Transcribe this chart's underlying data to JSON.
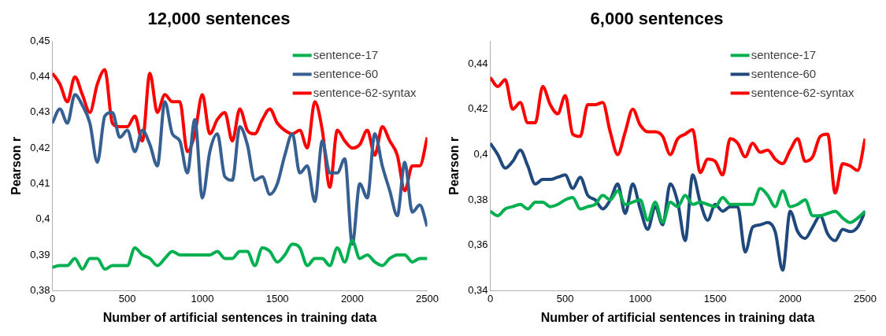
{
  "chart_data": [
    {
      "type": "line",
      "title": "12,000 sentences",
      "xlabel": "Number of artificial sentences in training data",
      "ylabel": "Pearson r",
      "x": [
        0,
        50,
        100,
        150,
        200,
        250,
        300,
        350,
        400,
        450,
        500,
        550,
        600,
        650,
        700,
        750,
        800,
        850,
        900,
        950,
        1000,
        1050,
        1100,
        1150,
        1200,
        1250,
        1300,
        1350,
        1400,
        1450,
        1500,
        1550,
        1600,
        1650,
        1700,
        1750,
        1800,
        1850,
        1900,
        1950,
        2000,
        2050,
        2100,
        2150,
        2200,
        2250,
        2300,
        2350,
        2400,
        2450,
        2500
      ],
      "series": [
        {
          "name": "sentence-17",
          "color": "#00b050",
          "values": [
            0.3865,
            0.387,
            0.387,
            0.389,
            0.386,
            0.389,
            0.389,
            0.386,
            0.387,
            0.387,
            0.387,
            0.392,
            0.39,
            0.389,
            0.387,
            0.389,
            0.391,
            0.39,
            0.39,
            0.39,
            0.39,
            0.39,
            0.391,
            0.389,
            0.389,
            0.391,
            0.391,
            0.387,
            0.392,
            0.391,
            0.388,
            0.39,
            0.393,
            0.392,
            0.387,
            0.389,
            0.389,
            0.387,
            0.392,
            0.388,
            0.394,
            0.389,
            0.39,
            0.388,
            0.387,
            0.389,
            0.39,
            0.39,
            0.388,
            0.389,
            0.389
          ]
        },
        {
          "name": "sentence-60",
          "color": "#376092",
          "values": [
            0.427,
            0.431,
            0.427,
            0.435,
            0.432,
            0.427,
            0.416,
            0.429,
            0.43,
            0.423,
            0.425,
            0.419,
            0.425,
            0.421,
            0.415,
            0.433,
            0.424,
            0.422,
            0.413,
            0.428,
            0.406,
            0.419,
            0.424,
            0.412,
            0.411,
            0.426,
            0.421,
            0.411,
            0.412,
            0.407,
            0.41,
            0.418,
            0.424,
            0.413,
            0.415,
            0.405,
            0.422,
            0.413,
            0.413,
            0.417,
            0.393,
            0.41,
            0.406,
            0.424,
            0.415,
            0.408,
            0.401,
            0.416,
            0.402,
            0.404,
            0.398
          ]
        },
        {
          "name": "sentence-62-syntax",
          "color": "#ff0000",
          "values": [
            0.441,
            0.438,
            0.433,
            0.44,
            0.435,
            0.43,
            0.438,
            0.442,
            0.427,
            0.426,
            0.426,
            0.429,
            0.422,
            0.441,
            0.43,
            0.435,
            0.433,
            0.433,
            0.419,
            0.424,
            0.435,
            0.424,
            0.428,
            0.43,
            0.422,
            0.431,
            0.425,
            0.424,
            0.428,
            0.431,
            0.427,
            0.425,
            0.424,
            0.425,
            0.42,
            0.433,
            0.425,
            0.409,
            0.425,
            0.422,
            0.42,
            0.421,
            0.425,
            0.418,
            0.426,
            0.422,
            0.418,
            0.408,
            0.415,
            0.415,
            0.423
          ]
        }
      ],
      "xlim": [
        0,
        2500
      ],
      "xticks": [
        0,
        500,
        1000,
        1500,
        2000,
        2500
      ],
      "ylim": [
        0.38,
        0.45
      ],
      "yticks": [
        {
          "value": 0.38,
          "label": "0,38"
        },
        {
          "value": 0.39,
          "label": "0,39"
        },
        {
          "value": 0.4,
          "label": "0,4"
        },
        {
          "value": 0.41,
          "label": "0,41"
        },
        {
          "value": 0.42,
          "label": "0,42"
        },
        {
          "value": 0.43,
          "label": "0,43"
        },
        {
          "value": 0.44,
          "label": "0,44"
        },
        {
          "value": 0.45,
          "label": "0,45"
        }
      ],
      "grid": false,
      "legend": "top right",
      "marker": "none",
      "line_style": "solid"
    },
    {
      "type": "line",
      "title": "6,000 sentences",
      "xlabel": "Number of artificial sentences in training data",
      "ylabel": "Pearson r",
      "x": [
        0,
        50,
        100,
        150,
        200,
        250,
        300,
        350,
        400,
        450,
        500,
        550,
        600,
        650,
        700,
        750,
        800,
        850,
        900,
        950,
        1000,
        1050,
        1100,
        1150,
        1200,
        1250,
        1300,
        1350,
        1400,
        1450,
        1500,
        1550,
        1600,
        1650,
        1700,
        1750,
        1800,
        1850,
        1900,
        1950,
        2000,
        2050,
        2100,
        2150,
        2200,
        2250,
        2300,
        2350,
        2400,
        2450,
        2500
      ],
      "series": [
        {
          "name": "sentence-17",
          "color": "#00b050",
          "values": [
            0.375,
            0.373,
            0.376,
            0.377,
            0.378,
            0.376,
            0.379,
            0.379,
            0.377,
            0.378,
            0.38,
            0.381,
            0.376,
            0.377,
            0.378,
            0.382,
            0.38,
            0.384,
            0.378,
            0.379,
            0.38,
            0.371,
            0.379,
            0.37,
            0.379,
            0.377,
            0.382,
            0.378,
            0.379,
            0.378,
            0.377,
            0.381,
            0.378,
            0.378,
            0.378,
            0.378,
            0.385,
            0.382,
            0.377,
            0.384,
            0.377,
            0.378,
            0.38,
            0.373,
            0.373,
            0.374,
            0.375,
            0.372,
            0.37,
            0.372,
            0.375
          ]
        },
        {
          "name": "sentence-60",
          "color": "#1f497d",
          "values": [
            0.405,
            0.4,
            0.394,
            0.397,
            0.402,
            0.395,
            0.387,
            0.389,
            0.389,
            0.39,
            0.391,
            0.385,
            0.39,
            0.382,
            0.38,
            0.376,
            0.38,
            0.387,
            0.374,
            0.387,
            0.376,
            0.367,
            0.377,
            0.369,
            0.387,
            0.379,
            0.362,
            0.391,
            0.379,
            0.371,
            0.378,
            0.375,
            0.377,
            0.377,
            0.357,
            0.368,
            0.369,
            0.37,
            0.366,
            0.349,
            0.375,
            0.366,
            0.363,
            0.368,
            0.373,
            0.365,
            0.362,
            0.367,
            0.366,
            0.368,
            0.375
          ]
        },
        {
          "name": "sentence-62-syntax",
          "color": "#ff0000",
          "values": [
            0.434,
            0.43,
            0.433,
            0.42,
            0.423,
            0.414,
            0.414,
            0.43,
            0.422,
            0.418,
            0.426,
            0.409,
            0.408,
            0.422,
            0.422,
            0.423,
            0.41,
            0.4,
            0.41,
            0.42,
            0.413,
            0.41,
            0.41,
            0.408,
            0.4,
            0.407,
            0.409,
            0.411,
            0.392,
            0.398,
            0.397,
            0.391,
            0.407,
            0.405,
            0.399,
            0.405,
            0.401,
            0.402,
            0.398,
            0.396,
            0.402,
            0.407,
            0.397,
            0.399,
            0.408,
            0.409,
            0.383,
            0.396,
            0.395,
            0.393,
            0.407
          ]
        }
      ],
      "xlim": [
        0,
        2500
      ],
      "xticks": [
        0,
        500,
        1000,
        1500,
        2000,
        2500
      ],
      "ylim": [
        0.34,
        0.45
      ],
      "yticks": [
        {
          "value": 0.34,
          "label": "0,34"
        },
        {
          "value": 0.36,
          "label": "0,36"
        },
        {
          "value": 0.38,
          "label": "0,38"
        },
        {
          "value": 0.4,
          "label": "0,4"
        },
        {
          "value": 0.42,
          "label": "0,42"
        },
        {
          "value": 0.44,
          "label": "0,44"
        }
      ],
      "grid": false,
      "legend": "top right",
      "marker": "none",
      "line_style": "solid"
    }
  ]
}
